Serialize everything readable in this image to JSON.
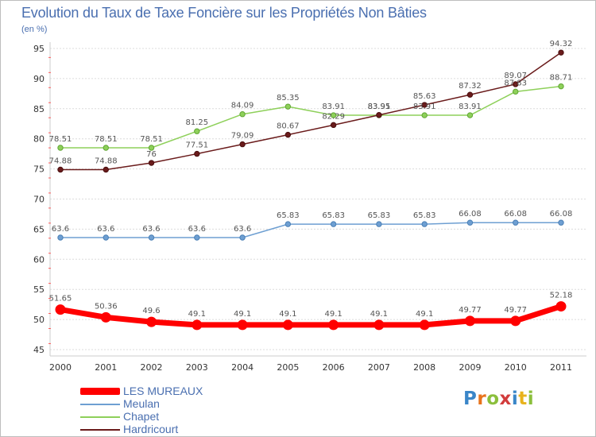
{
  "title": "Evolution du Taux de Taxe Foncière sur les Propriétés Non Bâties",
  "unit_label": "(en %)",
  "chart_data": {
    "type": "line",
    "title": "Evolution du Taux de Taxe Foncière sur les Propriétés Non Bâties",
    "ylabel": "(en %)",
    "xlabel": "",
    "x": [
      "2000",
      "2001",
      "2002",
      "2003",
      "2004",
      "2005",
      "2006",
      "2007",
      "2008",
      "2009",
      "2010",
      "2011"
    ],
    "ylim": [
      45,
      95
    ],
    "yticks": [
      45,
      50,
      55,
      60,
      65,
      70,
      75,
      80,
      85,
      90,
      95
    ],
    "grid": "horizontal",
    "legend_position": "bottom-left",
    "series": [
      {
        "name": "LES MUREAUX",
        "color": "#ff0000",
        "values": [
          51.65,
          50.36,
          49.6,
          49.1,
          49.1,
          49.1,
          49.1,
          49.1,
          49.1,
          49.77,
          49.77,
          52.18
        ],
        "labels": [
          "51.65",
          "50.36",
          "49.6",
          "49.1",
          "49.1",
          "49.1",
          "49.1",
          "49.1",
          "49.1",
          "49.77",
          "49.77",
          "52.18"
        ]
      },
      {
        "name": "Meulan",
        "color": "#6e9fd2",
        "values": [
          63.6,
          63.6,
          63.6,
          63.6,
          63.6,
          65.83,
          65.83,
          65.83,
          65.83,
          66.08,
          66.08,
          66.08
        ],
        "labels": [
          "63.6",
          "63.6",
          "63.6",
          "63.6",
          "63.6",
          "65.83",
          "65.83",
          "65.83",
          "65.83",
          "66.08",
          "66.08",
          "66.08"
        ]
      },
      {
        "name": "Chapet",
        "color": "#8ed05a",
        "values": [
          78.51,
          78.51,
          78.51,
          81.25,
          84.09,
          85.35,
          83.91,
          83.91,
          83.91,
          83.91,
          87.83,
          88.71
        ],
        "labels": [
          "78.51",
          "78.51",
          "78.51",
          "81.25",
          "84.09",
          "85.35",
          "83.91",
          "83.91",
          "83.91",
          "83.91",
          "87.83",
          "88.71"
        ]
      },
      {
        "name": "Hardricourt",
        "color": "#6a1b1b",
        "values": [
          74.88,
          74.88,
          76,
          77.51,
          79.09,
          80.67,
          82.29,
          83.95,
          85.63,
          87.32,
          89.07,
          94.32
        ],
        "labels": [
          "74.88",
          "74.88",
          "76",
          "77.51",
          "79.09",
          "80.67",
          "82.29",
          "83.95",
          "85.63",
          "87.32",
          "89.07",
          "94.32"
        ]
      }
    ]
  },
  "legend": [
    {
      "label": "LES MUREAUX",
      "color": "#ff0000"
    },
    {
      "label": "Meulan",
      "color": "#6e9fd2"
    },
    {
      "label": "Chapet",
      "color": "#8ed05a"
    },
    {
      "label": "Hardricourt",
      "color": "#6a1b1b"
    }
  ],
  "logo": {
    "letters": [
      "P",
      "r",
      "o",
      "x",
      "i",
      "t",
      "i"
    ],
    "colors": [
      "#3a86c8",
      "#e8731c",
      "#8bbf3c",
      "#d23c3c",
      "#3a86c8",
      "#e8b21c",
      "#8bbf3c"
    ]
  }
}
